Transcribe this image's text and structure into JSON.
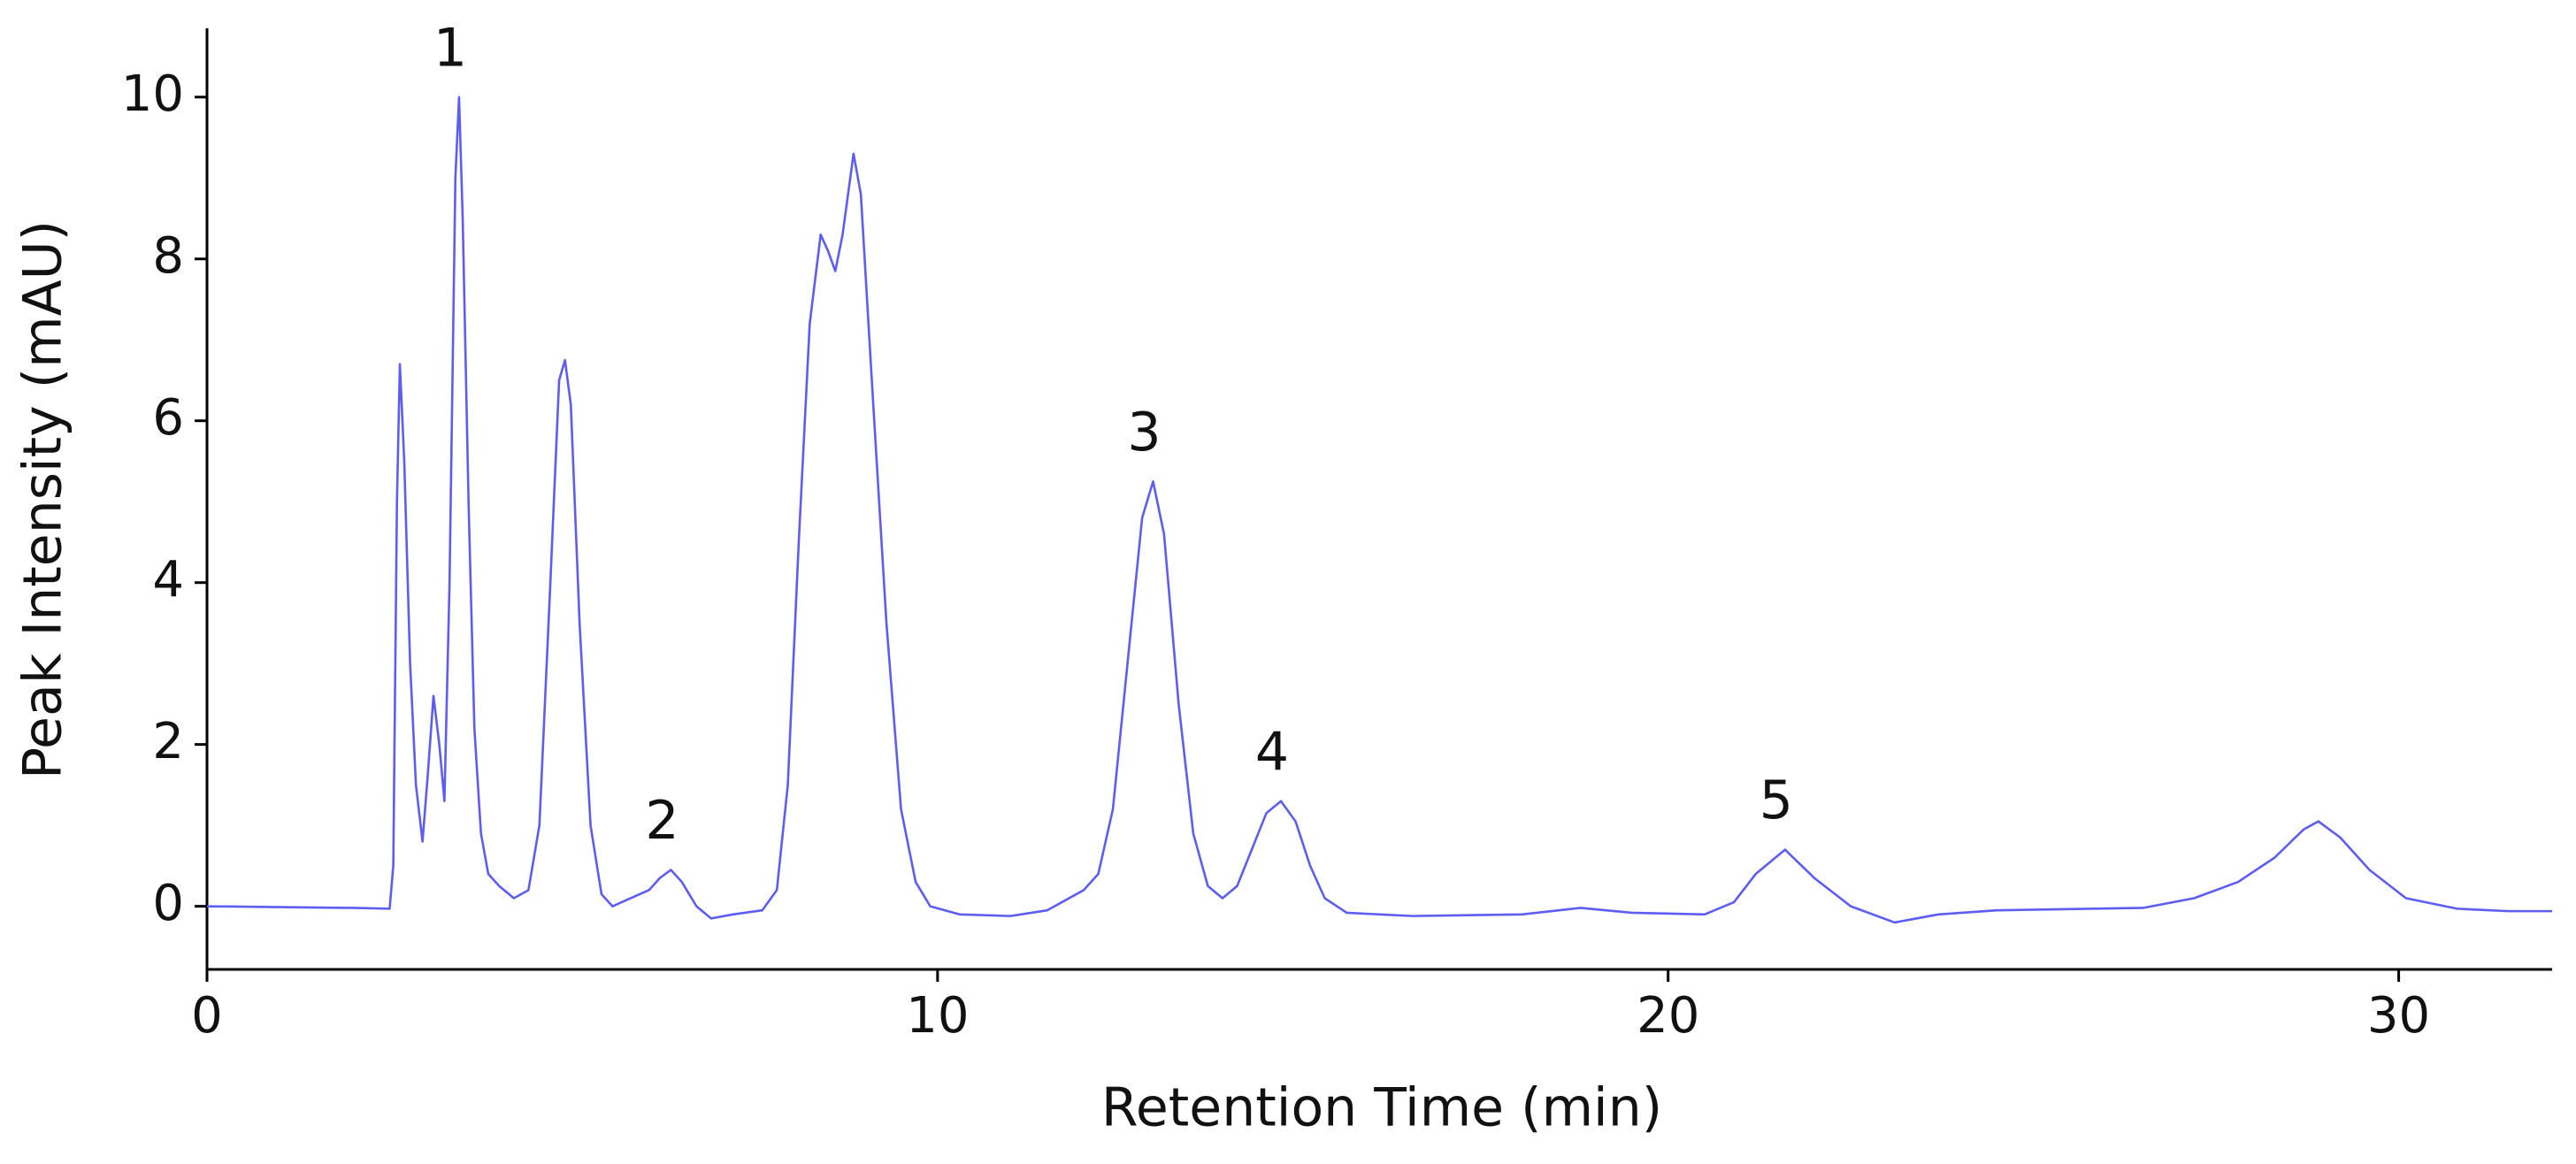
{
  "chart_data": {
    "type": "line",
    "xlabel": "Retention Time (min)",
    "ylabel": "Peak Intensity (mAU)",
    "xlim": [
      0,
      32.1
    ],
    "ylim": [
      -0.78,
      10.85
    ],
    "xticks": [
      0,
      10,
      20,
      30
    ],
    "yticks": [
      0,
      2,
      4,
      6,
      8,
      10
    ],
    "grid": false,
    "x": [
      0,
      1,
      2,
      2.5,
      2.55,
      2.6,
      2.64,
      2.7,
      2.78,
      2.86,
      2.95,
      3.02,
      3.1,
      3.18,
      3.25,
      3.32,
      3.4,
      3.45,
      3.5,
      3.58,
      3.66,
      3.75,
      3.85,
      4.0,
      4.2,
      4.4,
      4.55,
      4.7,
      4.82,
      4.9,
      4.98,
      5.1,
      5.25,
      5.4,
      5.55,
      5.8,
      6.05,
      6.2,
      6.35,
      6.5,
      6.7,
      6.9,
      7.2,
      7.6,
      7.8,
      7.95,
      8.1,
      8.25,
      8.4,
      8.5,
      8.6,
      8.7,
      8.85,
      8.95,
      9.1,
      9.3,
      9.5,
      9.7,
      9.9,
      10.3,
      11.0,
      11.5,
      12.0,
      12.2,
      12.4,
      12.6,
      12.8,
      12.95,
      13.1,
      13.3,
      13.5,
      13.7,
      13.9,
      14.1,
      14.3,
      14.5,
      14.7,
      14.9,
      15.1,
      15.3,
      15.6,
      16.5,
      18,
      18.8,
      19.5,
      20.5,
      20.9,
      21.2,
      21.6,
      22.0,
      22.5,
      23.1,
      23.7,
      24.5,
      26.5,
      27.2,
      27.8,
      28.3,
      28.7,
      28.9,
      29.2,
      29.6,
      30.1,
      30.8,
      31.5,
      32.1
    ],
    "series": [
      {
        "color": "#5d5df2",
        "values": [
          0,
          -0.01,
          -0.02,
          -0.03,
          0.5,
          5,
          6.7,
          5.5,
          3,
          1.5,
          0.8,
          1.6,
          2.6,
          2.0,
          1.3,
          4,
          9,
          10,
          8.5,
          5,
          2.2,
          0.9,
          0.4,
          0.25,
          0.1,
          0.2,
          1,
          4,
          6.5,
          6.75,
          6.2,
          3.5,
          1,
          0.15,
          0,
          0.1,
          0.2,
          0.35,
          0.45,
          0.3,
          0.0,
          -0.15,
          -0.1,
          -0.05,
          0.2,
          1.5,
          4.5,
          7.2,
          8.3,
          8.1,
          7.85,
          8.3,
          9.3,
          8.8,
          6.5,
          3.5,
          1.2,
          0.3,
          0.0,
          -0.1,
          -0.12,
          -0.05,
          0.2,
          0.4,
          1.2,
          3,
          4.8,
          5.25,
          4.6,
          2.5,
          0.9,
          0.25,
          0.1,
          0.25,
          0.7,
          1.15,
          1.3,
          1.05,
          0.5,
          0.1,
          -0.08,
          -0.12,
          -0.1,
          -0.02,
          -0.08,
          -0.1,
          0.05,
          0.4,
          0.7,
          0.35,
          0.0,
          -0.2,
          -0.1,
          -0.05,
          -0.02,
          0.1,
          0.3,
          0.6,
          0.95,
          1.05,
          0.85,
          0.45,
          0.1,
          -0.03,
          -0.06,
          -0.06
        ]
      }
    ],
    "annotations": [
      {
        "text": "1",
        "x": 3.45,
        "y": 10
      },
      {
        "text": "2",
        "x": 6.35,
        "y": 0.45
      },
      {
        "text": "3",
        "x": 12.95,
        "y": 5.25
      },
      {
        "text": "4",
        "x": 14.7,
        "y": 1.3
      },
      {
        "text": "5",
        "x": 21.6,
        "y": 0.7
      }
    ]
  }
}
